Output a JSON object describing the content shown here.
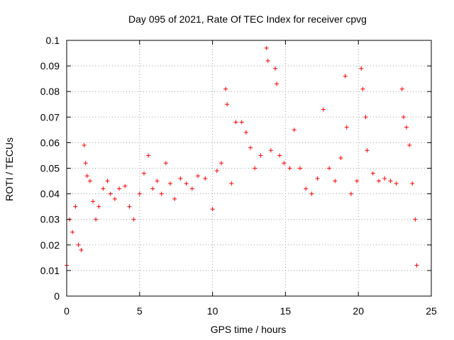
{
  "chart_data": {
    "type": "scatter",
    "title": "Day 095 of 2021, Rate Of TEC Index for receiver cpvg",
    "xlabel": "GPS time / hours",
    "ylabel": "ROTI / TECUs",
    "xlim": [
      0,
      25
    ],
    "ylim": [
      0,
      0.1
    ],
    "x_ticks": [
      "0",
      "5",
      "10",
      "15",
      "20",
      "25"
    ],
    "y_ticks": [
      "0",
      "0.01",
      "0.02",
      "0.03",
      "0.04",
      "0.05",
      "0.06",
      "0.07",
      "0.08",
      "0.09",
      "0.1"
    ],
    "grid": true,
    "marker": "+",
    "color": "#ff0000",
    "series": [
      {
        "points": [
          [
            0.0,
            0.012
          ],
          [
            0.2,
            0.03
          ],
          [
            0.4,
            0.025
          ],
          [
            0.6,
            0.035
          ],
          [
            0.8,
            0.02
          ],
          [
            1.0,
            0.018
          ],
          [
            1.2,
            0.059
          ],
          [
            1.3,
            0.052
          ],
          [
            1.4,
            0.047
          ],
          [
            1.6,
            0.045
          ],
          [
            1.8,
            0.037
          ],
          [
            2.0,
            0.03
          ],
          [
            2.2,
            0.035
          ],
          [
            2.5,
            0.042
          ],
          [
            2.8,
            0.045
          ],
          [
            3.0,
            0.04
          ],
          [
            3.3,
            0.038
          ],
          [
            3.6,
            0.042
          ],
          [
            4.0,
            0.043
          ],
          [
            4.3,
            0.035
          ],
          [
            4.6,
            0.03
          ],
          [
            5.0,
            0.04
          ],
          [
            5.3,
            0.048
          ],
          [
            5.6,
            0.055
          ],
          [
            5.9,
            0.042
          ],
          [
            6.2,
            0.045
          ],
          [
            6.5,
            0.04
          ],
          [
            6.8,
            0.052
          ],
          [
            7.1,
            0.044
          ],
          [
            7.4,
            0.038
          ],
          [
            7.8,
            0.046
          ],
          [
            8.2,
            0.044
          ],
          [
            8.6,
            0.042
          ],
          [
            9.0,
            0.047
          ],
          [
            9.5,
            0.046
          ],
          [
            10.0,
            0.034
          ],
          [
            10.3,
            0.049
          ],
          [
            10.6,
            0.052
          ],
          [
            10.9,
            0.081
          ],
          [
            11.0,
            0.075
          ],
          [
            11.3,
            0.044
          ],
          [
            11.6,
            0.068
          ],
          [
            12.0,
            0.068
          ],
          [
            12.3,
            0.064
          ],
          [
            12.6,
            0.058
          ],
          [
            12.9,
            0.05
          ],
          [
            13.3,
            0.055
          ],
          [
            13.7,
            0.097
          ],
          [
            13.8,
            0.092
          ],
          [
            14.0,
            0.057
          ],
          [
            14.3,
            0.089
          ],
          [
            14.4,
            0.083
          ],
          [
            14.6,
            0.055
          ],
          [
            14.9,
            0.052
          ],
          [
            15.3,
            0.05
          ],
          [
            15.6,
            0.065
          ],
          [
            16.0,
            0.05
          ],
          [
            16.4,
            0.042
          ],
          [
            16.8,
            0.04
          ],
          [
            17.2,
            0.046
          ],
          [
            17.6,
            0.073
          ],
          [
            18.0,
            0.05
          ],
          [
            18.4,
            0.045
          ],
          [
            18.8,
            0.054
          ],
          [
            19.1,
            0.086
          ],
          [
            19.2,
            0.066
          ],
          [
            19.5,
            0.04
          ],
          [
            19.9,
            0.045
          ],
          [
            20.2,
            0.089
          ],
          [
            20.3,
            0.081
          ],
          [
            20.5,
            0.07
          ],
          [
            20.6,
            0.057
          ],
          [
            21.0,
            0.048
          ],
          [
            21.4,
            0.045
          ],
          [
            21.8,
            0.046
          ],
          [
            22.2,
            0.045
          ],
          [
            22.6,
            0.044
          ],
          [
            23.0,
            0.081
          ],
          [
            23.1,
            0.07
          ],
          [
            23.3,
            0.066
          ],
          [
            23.5,
            0.059
          ],
          [
            23.7,
            0.044
          ],
          [
            23.9,
            0.03
          ],
          [
            24.0,
            0.012
          ]
        ]
      }
    ]
  }
}
